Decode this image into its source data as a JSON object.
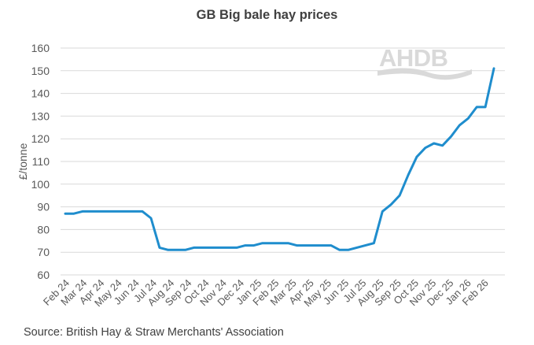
{
  "chart_data": {
    "type": "line",
    "title": "GB Big bale hay prices",
    "xlabel": "",
    "ylabel": "£/tonne",
    "ylim": [
      60,
      160
    ],
    "yticks": [
      60,
      70,
      80,
      90,
      100,
      110,
      120,
      130,
      140,
      150,
      160
    ],
    "grid": true,
    "legend": "none",
    "categories": [
      "Feb 24",
      "Mar 24",
      "Apr 24",
      "May 24",
      "Jun 24",
      "Jul 24",
      "Aug 24",
      "Sep 24",
      "Oct 24",
      "Nov 24",
      "Dec 24",
      "Jan 25",
      "Feb 25",
      "Mar 25",
      "Apr 25",
      "May 25",
      "Jun 25",
      "Jul 25",
      "Aug 25",
      "Sep 25",
      "Oct 25",
      "Nov 25",
      "Dec 25",
      "Jan 26",
      "Feb 26"
    ],
    "series": [
      {
        "name": "GB Big bale hay price",
        "color": "#1f8dcd",
        "x": [
          "Feb 24",
          "Feb 24",
          "Mar 24",
          "Mar 24",
          "Apr 24",
          "Apr 24",
          "May 24",
          "May 24",
          "Jun 24",
          "Jun 24",
          "Jul 24",
          "Jul 24",
          "Jul 24",
          "Aug 24",
          "Aug 24",
          "Sep 24",
          "Sep 24",
          "Oct 24",
          "Oct 24",
          "Nov 24",
          "Nov 24",
          "Dec 24",
          "Dec 24",
          "Jan 25",
          "Jan 25",
          "Feb 25",
          "Feb 25",
          "Mar 25",
          "Mar 25",
          "Apr 25",
          "Apr 25",
          "May 25",
          "May 25",
          "Jun 25",
          "Jun 25",
          "Jul 25",
          "Jul 25",
          "Aug 25",
          "Aug 25",
          "Sep 25",
          "Sep 25",
          "Oct 25",
          "Oct 25",
          "Nov 25",
          "Nov 25",
          "Dec 25",
          "Dec 25",
          "Jan 26",
          "Jan 26",
          "Feb 26",
          "Feb 26"
        ],
        "values": [
          87,
          87,
          88,
          88,
          88,
          88,
          88,
          88,
          88,
          88,
          85,
          72,
          71,
          71,
          71,
          72,
          72,
          72,
          72,
          72,
          72,
          73,
          73,
          74,
          74,
          74,
          74,
          73,
          73,
          73,
          73,
          73,
          71,
          71,
          72,
          73,
          74,
          88,
          91,
          95,
          104,
          112,
          116,
          118,
          117,
          121,
          126,
          129,
          134,
          134,
          151
        ]
      }
    ],
    "annotations": [
      "AHDB"
    ],
    "source": "Source: British Hay & Straw Merchants' Association"
  },
  "header": {
    "title": "GB Big bale hay prices"
  },
  "axis": {
    "ylabel": "£/tonne"
  },
  "logo": {
    "text": "AHDB"
  },
  "footer": {
    "source": "Source: British Hay & Straw Merchants' Association"
  }
}
